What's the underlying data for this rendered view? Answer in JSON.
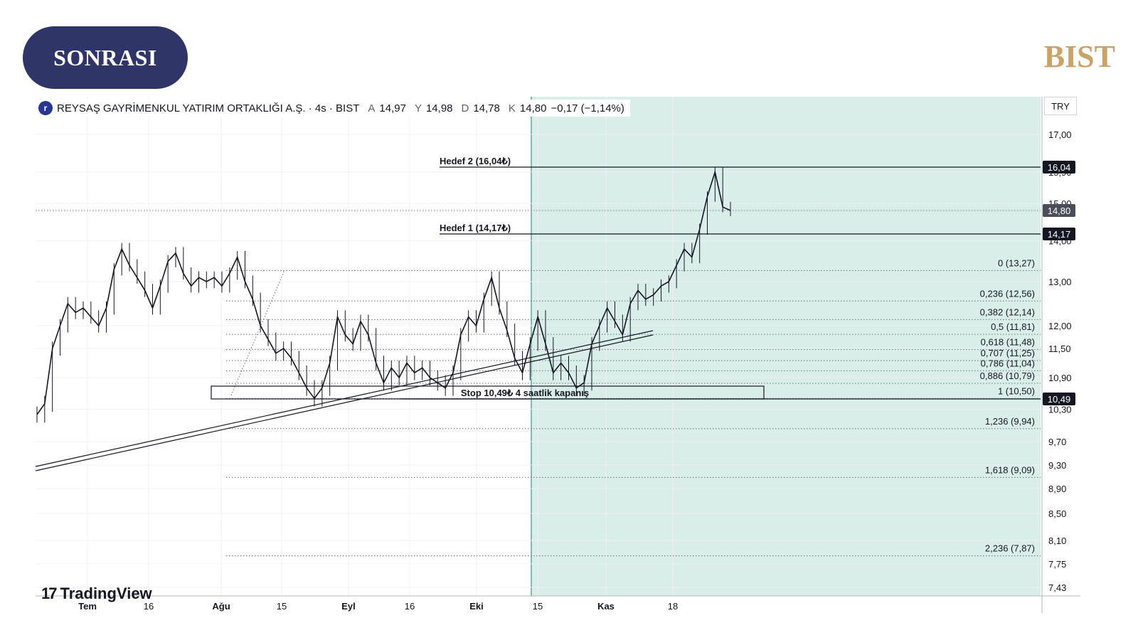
{
  "badge": {
    "label": "SONRASI"
  },
  "brand": {
    "label": "BIST"
  },
  "legend": {
    "logo_letter": "r",
    "title": "REYSAŞ GAYRİMENKUL YATIRIM ORTAKLIĞI A.Ş. · 4s · BIST",
    "open_label": "A",
    "open": "14,97",
    "high_label": "Y",
    "high": "14,98",
    "low_label": "D",
    "low": "14,78",
    "close_label": "K",
    "close": "14,80",
    "change": "−0,17 (−1,14%)"
  },
  "currency": "TRY",
  "tradingview": {
    "label": "TradingView",
    "logo": "17"
  },
  "colors": {
    "shade": "#d9ede9",
    "candle": "#131722",
    "brand_gold": "#c9a36a",
    "badge_bg": "#2f3566",
    "label_bg": "#131722"
  },
  "chart_data": {
    "type": "line",
    "title": "",
    "x_ticks": [
      "Tem",
      "16",
      "Ağu",
      "15",
      "Eyl",
      "16",
      "Eki",
      "15",
      "Kas",
      "18"
    ],
    "y_ticks": [
      17.0,
      15.9,
      15.0,
      14.0,
      13.0,
      12.0,
      11.5,
      10.9,
      10.3,
      9.7,
      9.3,
      8.9,
      8.5,
      8.1,
      7.75,
      7.43
    ],
    "y_tick_labels": [
      "17,00",
      "15,90",
      "15,00",
      "14,00",
      "13,00",
      "12,00",
      "11,50",
      "10,90",
      "10,30",
      "9,70",
      "9,30",
      "8,90",
      "8,50",
      "8,10",
      "7,75",
      "7,43"
    ],
    "price_labels": [
      {
        "value": 16.04,
        "label": "16,04",
        "style": "dark"
      },
      {
        "value": 14.8,
        "label": "14,80",
        "style": "grey"
      },
      {
        "value": 14.17,
        "label": "14,17",
        "style": "dark"
      },
      {
        "value": 10.49,
        "label": "10,49",
        "style": "dark"
      }
    ],
    "targets": [
      {
        "value": 16.04,
        "label": "Hedef 2 (16,04₺)"
      },
      {
        "value": 14.17,
        "label": "Hedef 1 (14,17₺)"
      }
    ],
    "stop": {
      "value": 10.49,
      "label": "Stop 10,49₺ 4 saatlik kapanış"
    },
    "fibonacci": [
      {
        "ratio": 0,
        "value": 13.27,
        "label": "0 (13,27)"
      },
      {
        "ratio": 0.236,
        "value": 12.56,
        "label": "0,236 (12,56)"
      },
      {
        "ratio": 0.382,
        "value": 12.14,
        "label": "0,382 (12,14)"
      },
      {
        "ratio": 0.5,
        "value": 11.81,
        "label": "0,5 (11,81)"
      },
      {
        "ratio": 0.618,
        "value": 11.48,
        "label": "0,618 (11,48)"
      },
      {
        "ratio": 0.707,
        "value": 11.25,
        "label": "0,707 (11,25)"
      },
      {
        "ratio": 0.786,
        "value": 11.04,
        "label": "0,786 (11,04)"
      },
      {
        "ratio": 0.886,
        "value": 10.79,
        "label": "0,886 (10,79)"
      },
      {
        "ratio": 1,
        "value": 10.5,
        "label": "1 (10,50)"
      },
      {
        "ratio": 1.236,
        "value": 9.94,
        "label": "1,236 (9,94)"
      },
      {
        "ratio": 1.618,
        "value": 9.09,
        "label": "1,618 (9,09)"
      },
      {
        "ratio": 2.236,
        "value": 7.87,
        "label": "2,236 (7,87)"
      }
    ],
    "last_price": 14.8,
    "series": [
      {
        "values": [
          10.2,
          10.4,
          11.5,
          12.0,
          12.5,
          12.3,
          12.4,
          12.2,
          12.0,
          12.4,
          13.3,
          13.8,
          13.4,
          13.1,
          12.8,
          12.4,
          12.9,
          13.5,
          13.7,
          13.2,
          12.9,
          13.1,
          13.0,
          13.1,
          12.9,
          13.2,
          13.6,
          13.0,
          12.6,
          12.0,
          11.7,
          11.4,
          11.5,
          11.3,
          11.0,
          10.7,
          10.5,
          10.7,
          11.2,
          12.2,
          11.8,
          11.6,
          12.1,
          11.8,
          11.2,
          10.8,
          11.1,
          10.9,
          11.2,
          11.0,
          11.1,
          10.9,
          10.8,
          10.7,
          11.0,
          11.8,
          12.2,
          12.0,
          12.6,
          13.1,
          12.4,
          11.9,
          11.3,
          11.0,
          11.6,
          12.2,
          11.6,
          11.0,
          11.2,
          11.0,
          10.7,
          10.8,
          11.6,
          12.0,
          12.4,
          12.1,
          11.8,
          12.5,
          12.8,
          12.6,
          12.7,
          12.9,
          13.0,
          13.4,
          13.8,
          13.6,
          14.3,
          15.2,
          15.9,
          14.9,
          14.8
        ]
      }
    ],
    "grid": true,
    "legend": "top-left"
  }
}
